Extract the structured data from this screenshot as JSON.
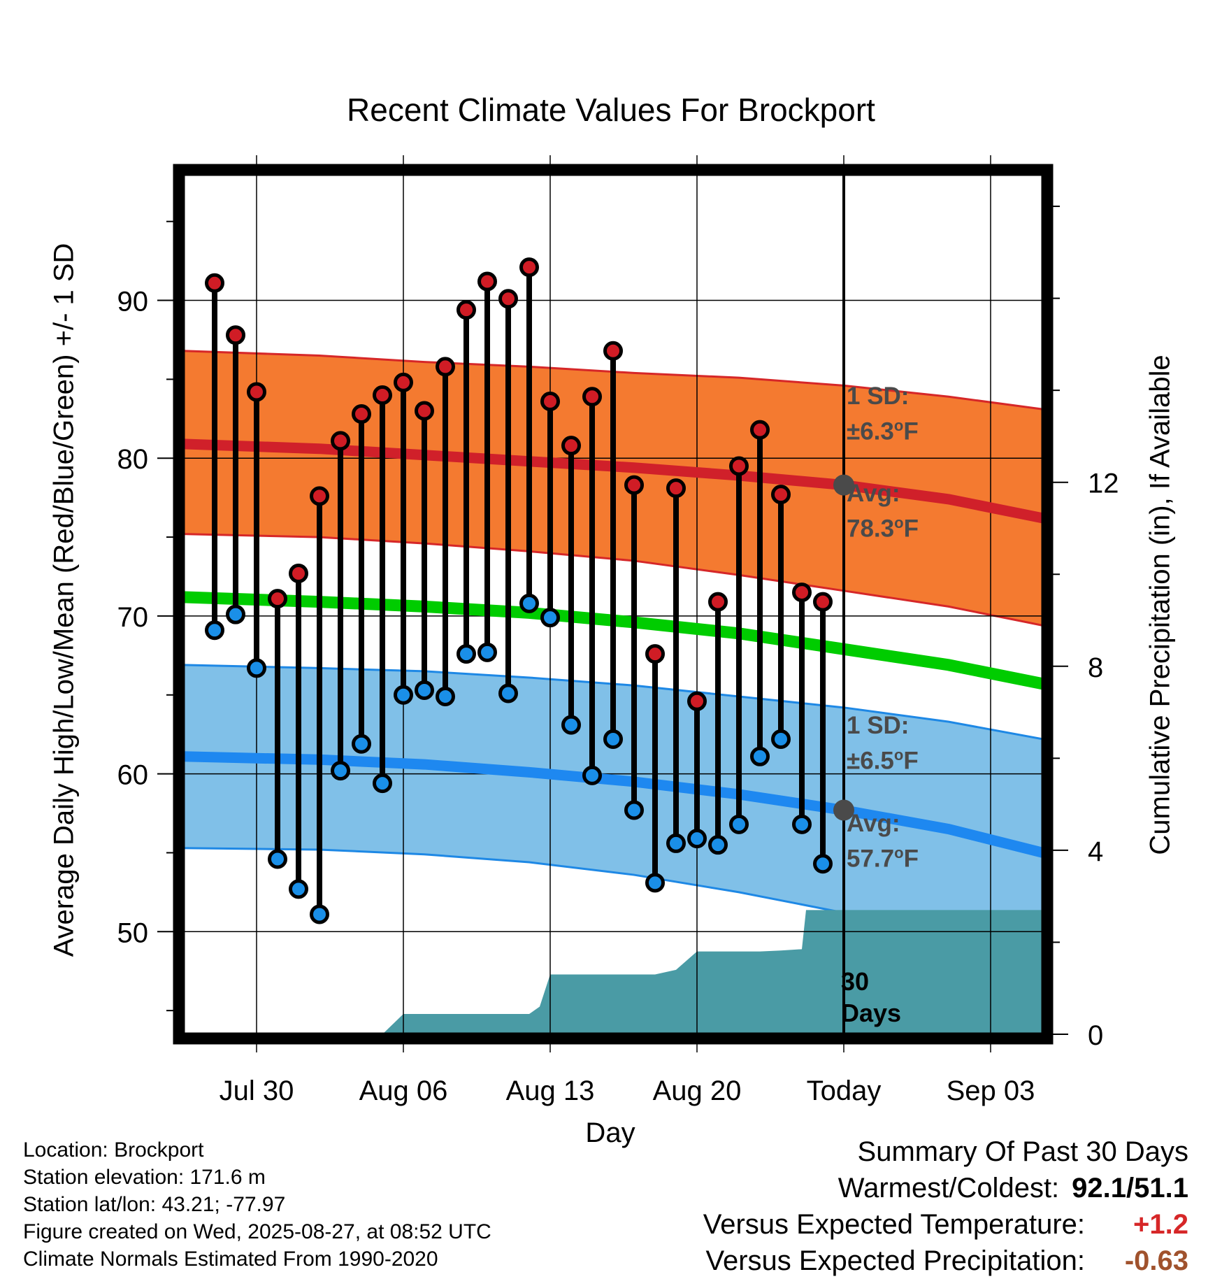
{
  "chart_data": {
    "type": "line",
    "title": "Recent Climate Values For Brockport",
    "xlabel": "Day",
    "ylabel": "Average Daily High/Low/Mean (Red/Blue/Green) +/- 1 SD",
    "ylabel_right": "Cumulative Precipitation (in), If Available",
    "x_tick_labels": [
      "Jul 30",
      "Aug 06",
      "Aug 13",
      "Aug 20",
      "Today",
      "Sep 03"
    ],
    "x_ticks_day_offset": [
      -28,
      -21,
      -14,
      -7,
      0,
      7
    ],
    "xlim_day_offset": [
      -31.5,
      9.5
    ],
    "ylim": [
      43.5,
      98
    ],
    "y_ticks": [
      50,
      60,
      70,
      80,
      90
    ],
    "y2lim": [
      0,
      18.7
    ],
    "y2_ticks": [
      0,
      4,
      8,
      12
    ],
    "grid": true,
    "observed_days": [
      -30,
      -29,
      -28,
      -27,
      -26,
      -25,
      -24,
      -23,
      -22,
      -21,
      -20,
      -19,
      -18,
      -17,
      -16,
      -15,
      -14,
      -13,
      -12,
      -11,
      -10,
      -9,
      -8,
      -7,
      -6,
      -5,
      -4,
      -3,
      -2,
      -1
    ],
    "daily_high": [
      91.1,
      87.8,
      84.2,
      71.1,
      72.7,
      77.6,
      81.1,
      82.8,
      84.0,
      84.8,
      83.0,
      85.8,
      89.4,
      91.2,
      90.1,
      92.1,
      83.6,
      80.8,
      83.9,
      86.8,
      78.3,
      67.6,
      78.1,
      64.6,
      70.9,
      79.5,
      81.8,
      77.7,
      71.5,
      70.9
    ],
    "daily_low": [
      69.1,
      70.1,
      66.7,
      54.6,
      52.7,
      51.1,
      60.2,
      61.9,
      59.4,
      65.0,
      65.3,
      64.9,
      67.6,
      67.7,
      65.1,
      70.8,
      69.9,
      63.1,
      59.9,
      62.2,
      57.7,
      53.1,
      55.6,
      55.9,
      55.5,
      56.8,
      61.1,
      62.2,
      56.8,
      54.3
    ],
    "normal_high": {
      "x": [
        -31.5,
        -25,
        -20,
        -15,
        -10,
        -5,
        0,
        5,
        9.5
      ],
      "avg": [
        80.9,
        80.6,
        80.2,
        79.8,
        79.4,
        78.9,
        78.3,
        77.4,
        76.2
      ],
      "upper": [
        86.8,
        86.5,
        86.1,
        85.8,
        85.4,
        85.1,
        84.6,
        83.9,
        83.1
      ],
      "lower": [
        75.2,
        75.0,
        74.6,
        74.1,
        73.5,
        72.6,
        71.6,
        70.6,
        69.4
      ]
    },
    "normal_low": {
      "x": [
        -31.5,
        -25,
        -20,
        -15,
        -10,
        -5,
        0,
        5,
        9.5
      ],
      "avg": [
        61.1,
        60.9,
        60.6,
        60.1,
        59.5,
        58.7,
        57.7,
        56.5,
        55.0
      ],
      "upper": [
        66.9,
        66.7,
        66.5,
        66.1,
        65.6,
        64.9,
        64.2,
        63.3,
        62.2
      ],
      "lower": [
        55.3,
        55.2,
        54.9,
        54.4,
        53.6,
        52.5,
        51.2,
        49.7,
        48.0
      ]
    },
    "normal_mean": {
      "x": [
        -31.5,
        -25,
        -20,
        -15,
        -10,
        -5,
        0,
        5,
        9.5
      ],
      "values": [
        71.2,
        70.9,
        70.6,
        70.2,
        69.6,
        68.9,
        67.9,
        66.9,
        65.7
      ]
    },
    "cumulative_precip": {
      "x": [
        -31.5,
        -22,
        -21,
        -20,
        -19,
        -18,
        -17,
        -16,
        -15,
        -14.5,
        -14,
        -13,
        -12,
        -11,
        -10,
        -9,
        -8,
        -7.5,
        -7,
        -6,
        -5,
        -4,
        -3,
        -2,
        -1.8,
        9.5
      ],
      "values": [
        0,
        0,
        0.44,
        0.44,
        0.44,
        0.44,
        0.44,
        0.44,
        0.44,
        0.6,
        1.3,
        1.3,
        1.3,
        1.3,
        1.3,
        1.3,
        1.4,
        1.6,
        1.8,
        1.8,
        1.8,
        1.8,
        1.82,
        1.85,
        2.7,
        2.7
      ]
    },
    "annotations": {
      "high_sd": {
        "line1": "1 SD:",
        "line2": "±6.3",
        "unit": "F",
        "deg": "o"
      },
      "high_avg": {
        "line1": "Avg:",
        "line2": "78.3",
        "unit": "F",
        "deg": "o",
        "value": 78.3
      },
      "low_sd": {
        "line1": "1 SD:",
        "line2": "±6.5",
        "unit": "F",
        "deg": "o"
      },
      "low_avg": {
        "line1": "Avg:",
        "line2": "57.7",
        "unit": "F",
        "deg": "o",
        "value": 57.7
      },
      "window_line1": "30",
      "window_line2": "Days"
    },
    "colors": {
      "high_band": "#f47a30",
      "high_band_edge": "#d62728",
      "high_avg_line": "#d0202a",
      "low_band": "#80c0e8",
      "low_band_edge": "#1e88e5",
      "low_avg_line": "#1e88f0",
      "mean_line": "#00cc00",
      "precip": "#4a9ba5",
      "high_dot": "#d01c25",
      "low_dot": "#1a8fe8",
      "today_dot": "#4a4a4a",
      "annotation_text": "#4a4a4a"
    }
  },
  "footer": {
    "location": "Location: Brockport",
    "elevation": "Station elevation: 171.6 m",
    "latlon": "Station lat/lon: 43.21; -77.97",
    "created": "Figure created on Wed, 2025-08-27, at 08:52 UTC",
    "normals": "Climate Normals Estimated From 1990-2020"
  },
  "summary": {
    "heading": "Summary Of Past 30 Days",
    "warm_cold_label": "Warmest/Coldest:",
    "warm_cold_value": "92.1/51.1",
    "temp_label": "Versus Expected Temperature:",
    "temp_value": "+1.2",
    "temp_color": "#d62728",
    "precip_label": "Versus Expected Precipitation:",
    "precip_value": "-0.63",
    "precip_color": "#a0522d"
  }
}
